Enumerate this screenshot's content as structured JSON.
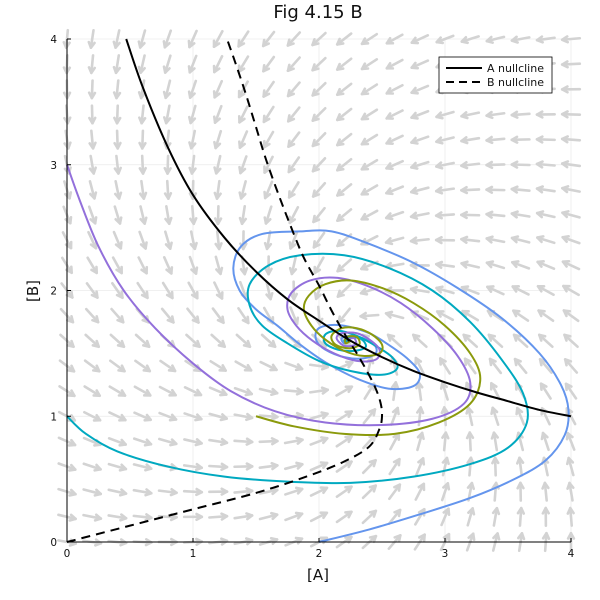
{
  "chart_data": {
    "type": "line",
    "title": "Fig 4.15 B",
    "xlabel": "[A]",
    "ylabel": "[B]",
    "xlim": [
      0,
      4
    ],
    "ylim": [
      0,
      4
    ],
    "xticks": [
      "0",
      "1",
      "2",
      "3",
      "4"
    ],
    "yticks": [
      "0",
      "1",
      "2",
      "3",
      "4"
    ],
    "grid": true,
    "legend_position": "top-right",
    "vector_field": true,
    "vector_field_color": "#d3d3d3",
    "fixed_point": [
      2.25,
      1.6
    ],
    "nullclines": [
      {
        "name": "A nullcline",
        "style": "solid",
        "color": "#000000",
        "points": [
          [
            0.47,
            4.0
          ],
          [
            0.6,
            3.62
          ],
          [
            0.8,
            3.14
          ],
          [
            1.0,
            2.76
          ],
          [
            1.25,
            2.42
          ],
          [
            1.5,
            2.15
          ],
          [
            1.75,
            1.93
          ],
          [
            2.0,
            1.76
          ],
          [
            2.25,
            1.6
          ],
          [
            2.5,
            1.47
          ],
          [
            2.75,
            1.36
          ],
          [
            3.0,
            1.27
          ],
          [
            3.25,
            1.19
          ],
          [
            3.5,
            1.12
          ],
          [
            3.75,
            1.05
          ],
          [
            4.0,
            1.0
          ]
        ]
      },
      {
        "name": "B nullcline",
        "style": "dashed",
        "color": "#000000",
        "points": [
          [
            0.0,
            0.0
          ],
          [
            0.5,
            0.13
          ],
          [
            1.0,
            0.26
          ],
          [
            1.5,
            0.39
          ],
          [
            1.9,
            0.52
          ],
          [
            2.2,
            0.64
          ],
          [
            2.4,
            0.76
          ],
          [
            2.48,
            0.9
          ],
          [
            2.5,
            1.0
          ],
          [
            2.49,
            1.1
          ],
          [
            2.45,
            1.22
          ],
          [
            2.38,
            1.36
          ],
          [
            2.3,
            1.5
          ],
          [
            2.2,
            1.66
          ],
          [
            2.1,
            1.84
          ],
          [
            2.0,
            2.04
          ],
          [
            1.88,
            2.26
          ],
          [
            1.78,
            2.5
          ],
          [
            1.68,
            2.76
          ],
          [
            1.58,
            3.04
          ],
          [
            1.5,
            3.3
          ],
          [
            1.42,
            3.56
          ],
          [
            1.34,
            3.8
          ],
          [
            1.27,
            4.0
          ]
        ]
      }
    ],
    "trajectories": [
      {
        "color": "#6495ed",
        "start": [
          2.0,
          0.0
        ],
        "points": [
          [
            2.0,
            0.0
          ],
          [
            2.4,
            0.1
          ],
          [
            2.8,
            0.22
          ],
          [
            3.2,
            0.35
          ],
          [
            3.55,
            0.5
          ],
          [
            3.8,
            0.65
          ],
          [
            3.95,
            0.85
          ],
          [
            3.98,
            1.05
          ],
          [
            3.92,
            1.25
          ],
          [
            3.75,
            1.5
          ],
          [
            3.45,
            1.78
          ],
          [
            3.1,
            2.02
          ],
          [
            2.75,
            2.22
          ],
          [
            2.4,
            2.37
          ],
          [
            2.1,
            2.47
          ],
          [
            1.85,
            2.47
          ],
          [
            1.55,
            2.45
          ],
          [
            1.38,
            2.35
          ],
          [
            1.32,
            2.18
          ],
          [
            1.37,
            2.0
          ],
          [
            1.5,
            1.85
          ],
          [
            1.67,
            1.72
          ],
          [
            1.85,
            1.57
          ],
          [
            2.05,
            1.43
          ],
          [
            2.3,
            1.3
          ],
          [
            2.55,
            1.22
          ],
          [
            2.75,
            1.24
          ],
          [
            2.8,
            1.34
          ],
          [
            2.7,
            1.46
          ],
          [
            2.55,
            1.57
          ],
          [
            2.4,
            1.66
          ],
          [
            2.2,
            1.72
          ],
          [
            2.05,
            1.72
          ],
          [
            1.98,
            1.68
          ],
          [
            1.98,
            1.6
          ],
          [
            2.05,
            1.53
          ],
          [
            2.2,
            1.47
          ],
          [
            2.35,
            1.46
          ],
          [
            2.45,
            1.5
          ],
          [
            2.44,
            1.57
          ],
          [
            2.35,
            1.62
          ],
          [
            2.25,
            1.64
          ],
          [
            2.18,
            1.62
          ],
          [
            2.2,
            1.58
          ],
          [
            2.25,
            1.6
          ]
        ]
      },
      {
        "color": "#00a9c0",
        "start": [
          0.0,
          1.0
        ],
        "points": [
          [
            0.0,
            1.0
          ],
          [
            0.15,
            0.86
          ],
          [
            0.4,
            0.72
          ],
          [
            0.8,
            0.6
          ],
          [
            1.25,
            0.52
          ],
          [
            1.75,
            0.48
          ],
          [
            2.25,
            0.47
          ],
          [
            2.75,
            0.52
          ],
          [
            3.2,
            0.62
          ],
          [
            3.5,
            0.75
          ],
          [
            3.65,
            0.95
          ],
          [
            3.62,
            1.18
          ],
          [
            3.45,
            1.45
          ],
          [
            3.2,
            1.75
          ],
          [
            2.9,
            2.0
          ],
          [
            2.55,
            2.18
          ],
          [
            2.2,
            2.28
          ],
          [
            1.85,
            2.28
          ],
          [
            1.6,
            2.2
          ],
          [
            1.45,
            2.05
          ],
          [
            1.45,
            1.88
          ],
          [
            1.55,
            1.72
          ],
          [
            1.75,
            1.58
          ],
          [
            2.0,
            1.44
          ],
          [
            2.25,
            1.36
          ],
          [
            2.5,
            1.33
          ],
          [
            2.62,
            1.38
          ],
          [
            2.58,
            1.47
          ],
          [
            2.45,
            1.56
          ],
          [
            2.3,
            1.64
          ],
          [
            2.15,
            1.68
          ],
          [
            2.05,
            1.65
          ],
          [
            2.05,
            1.58
          ],
          [
            2.15,
            1.53
          ],
          [
            2.28,
            1.52
          ],
          [
            2.37,
            1.55
          ],
          [
            2.34,
            1.61
          ],
          [
            2.25,
            1.63
          ],
          [
            2.2,
            1.6
          ],
          [
            2.25,
            1.6
          ]
        ]
      },
      {
        "color": "#9370db",
        "start": [
          0.0,
          3.0
        ],
        "points": [
          [
            0.0,
            3.0
          ],
          [
            0.1,
            2.72
          ],
          [
            0.25,
            2.35
          ],
          [
            0.45,
            2.0
          ],
          [
            0.7,
            1.7
          ],
          [
            1.0,
            1.42
          ],
          [
            1.3,
            1.2
          ],
          [
            1.65,
            1.04
          ],
          [
            2.05,
            0.95
          ],
          [
            2.5,
            0.93
          ],
          [
            2.9,
            0.98
          ],
          [
            3.15,
            1.1
          ],
          [
            3.2,
            1.27
          ],
          [
            3.1,
            1.48
          ],
          [
            2.9,
            1.7
          ],
          [
            2.65,
            1.9
          ],
          [
            2.4,
            2.03
          ],
          [
            2.15,
            2.1
          ],
          [
            1.93,
            2.08
          ],
          [
            1.78,
            1.98
          ],
          [
            1.75,
            1.85
          ],
          [
            1.82,
            1.72
          ],
          [
            1.95,
            1.6
          ],
          [
            2.12,
            1.5
          ],
          [
            2.3,
            1.44
          ],
          [
            2.45,
            1.45
          ],
          [
            2.48,
            1.53
          ],
          [
            2.4,
            1.61
          ],
          [
            2.3,
            1.66
          ],
          [
            2.18,
            1.66
          ],
          [
            2.14,
            1.62
          ],
          [
            2.2,
            1.56
          ],
          [
            2.29,
            1.57
          ],
          [
            2.28,
            1.62
          ],
          [
            2.23,
            1.61
          ],
          [
            2.25,
            1.6
          ]
        ]
      },
      {
        "color": "#8b9a0c",
        "start": [
          1.5,
          1.0
        ],
        "points": [
          [
            1.5,
            1.0
          ],
          [
            1.8,
            0.92
          ],
          [
            2.2,
            0.86
          ],
          [
            2.6,
            0.86
          ],
          [
            2.95,
            0.95
          ],
          [
            3.2,
            1.1
          ],
          [
            3.28,
            1.3
          ],
          [
            3.2,
            1.5
          ],
          [
            3.0,
            1.72
          ],
          [
            2.75,
            1.9
          ],
          [
            2.5,
            2.02
          ],
          [
            2.25,
            2.08
          ],
          [
            2.05,
            2.05
          ],
          [
            1.92,
            1.96
          ],
          [
            1.88,
            1.85
          ],
          [
            1.94,
            1.72
          ],
          [
            2.05,
            1.61
          ],
          [
            2.2,
            1.52
          ],
          [
            2.35,
            1.48
          ],
          [
            2.48,
            1.5
          ],
          [
            2.5,
            1.57
          ],
          [
            2.42,
            1.65
          ],
          [
            2.3,
            1.7
          ],
          [
            2.18,
            1.7
          ],
          [
            2.1,
            1.64
          ],
          [
            2.13,
            1.57
          ],
          [
            2.24,
            1.54
          ],
          [
            2.32,
            1.57
          ],
          [
            2.3,
            1.63
          ],
          [
            2.22,
            1.63
          ],
          [
            2.21,
            1.58
          ],
          [
            2.25,
            1.6
          ]
        ]
      }
    ]
  }
}
